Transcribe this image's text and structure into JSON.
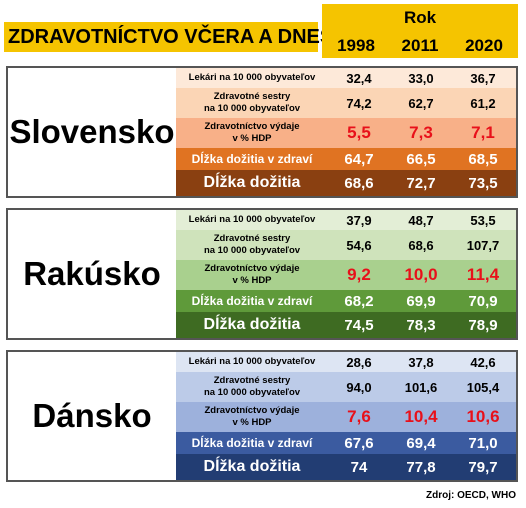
{
  "header": {
    "title": "ZDRAVOTNÍCTVO VČERA A DNES",
    "rok_label": "Rok",
    "years": [
      "1998",
      "2011",
      "2020"
    ]
  },
  "row_labels": {
    "doctors": "Lekári na 10 000 obyvateľov",
    "nurses_line1": "Zdravotné sestry",
    "nurses_line2": "na 10 000 obyvateľov",
    "spending_line1": "Zdravotníctvo výdaje",
    "spending_line2": "v % HDP",
    "healthy_life": "Dĺžka dožitia v zdraví",
    "life": "Dĺžka dožitia"
  },
  "sections": [
    {
      "country": "Slovensko",
      "colors": [
        "#fde9d9",
        "#fbd5b5",
        "#f8b088",
        "#e07322",
        "#8a4011"
      ],
      "doctors": [
        "32,4",
        "33,0",
        "36,7"
      ],
      "nurses": [
        "74,2",
        "62,7",
        "61,2"
      ],
      "spending": [
        "5,5",
        "7,3",
        "7,1"
      ],
      "healthy_life": [
        "64,7",
        "66,5",
        "68,5"
      ],
      "life": [
        "68,6",
        "72,7",
        "73,5"
      ]
    },
    {
      "country": "Rakúsko",
      "colors": [
        "#e3eed6",
        "#cfe3bb",
        "#a9d08e",
        "#5f9a3a",
        "#3e6b22"
      ],
      "doctors": [
        "37,9",
        "48,7",
        "53,5"
      ],
      "nurses": [
        "54,6",
        "68,6",
        "107,7"
      ],
      "spending": [
        "9,2",
        "10,0",
        "11,4"
      ],
      "healthy_life": [
        "68,2",
        "69,9",
        "70,9"
      ],
      "life": [
        "74,5",
        "78,3",
        "78,9"
      ]
    },
    {
      "country": "Dánsko",
      "colors": [
        "#dde5f3",
        "#bccbe8",
        "#9db1dc",
        "#3b5ba0",
        "#223d73"
      ],
      "doctors": [
        "28,6",
        "37,8",
        "42,6"
      ],
      "nurses": [
        "94,0",
        "101,6",
        "105,4"
      ],
      "spending": [
        "7,6",
        "10,4",
        "10,6"
      ],
      "healthy_life": [
        "67,6",
        "69,4",
        "71,0"
      ],
      "life": [
        "74",
        "77,8",
        "79,7"
      ]
    }
  ],
  "source": "Zdroj: OECD, WHO"
}
